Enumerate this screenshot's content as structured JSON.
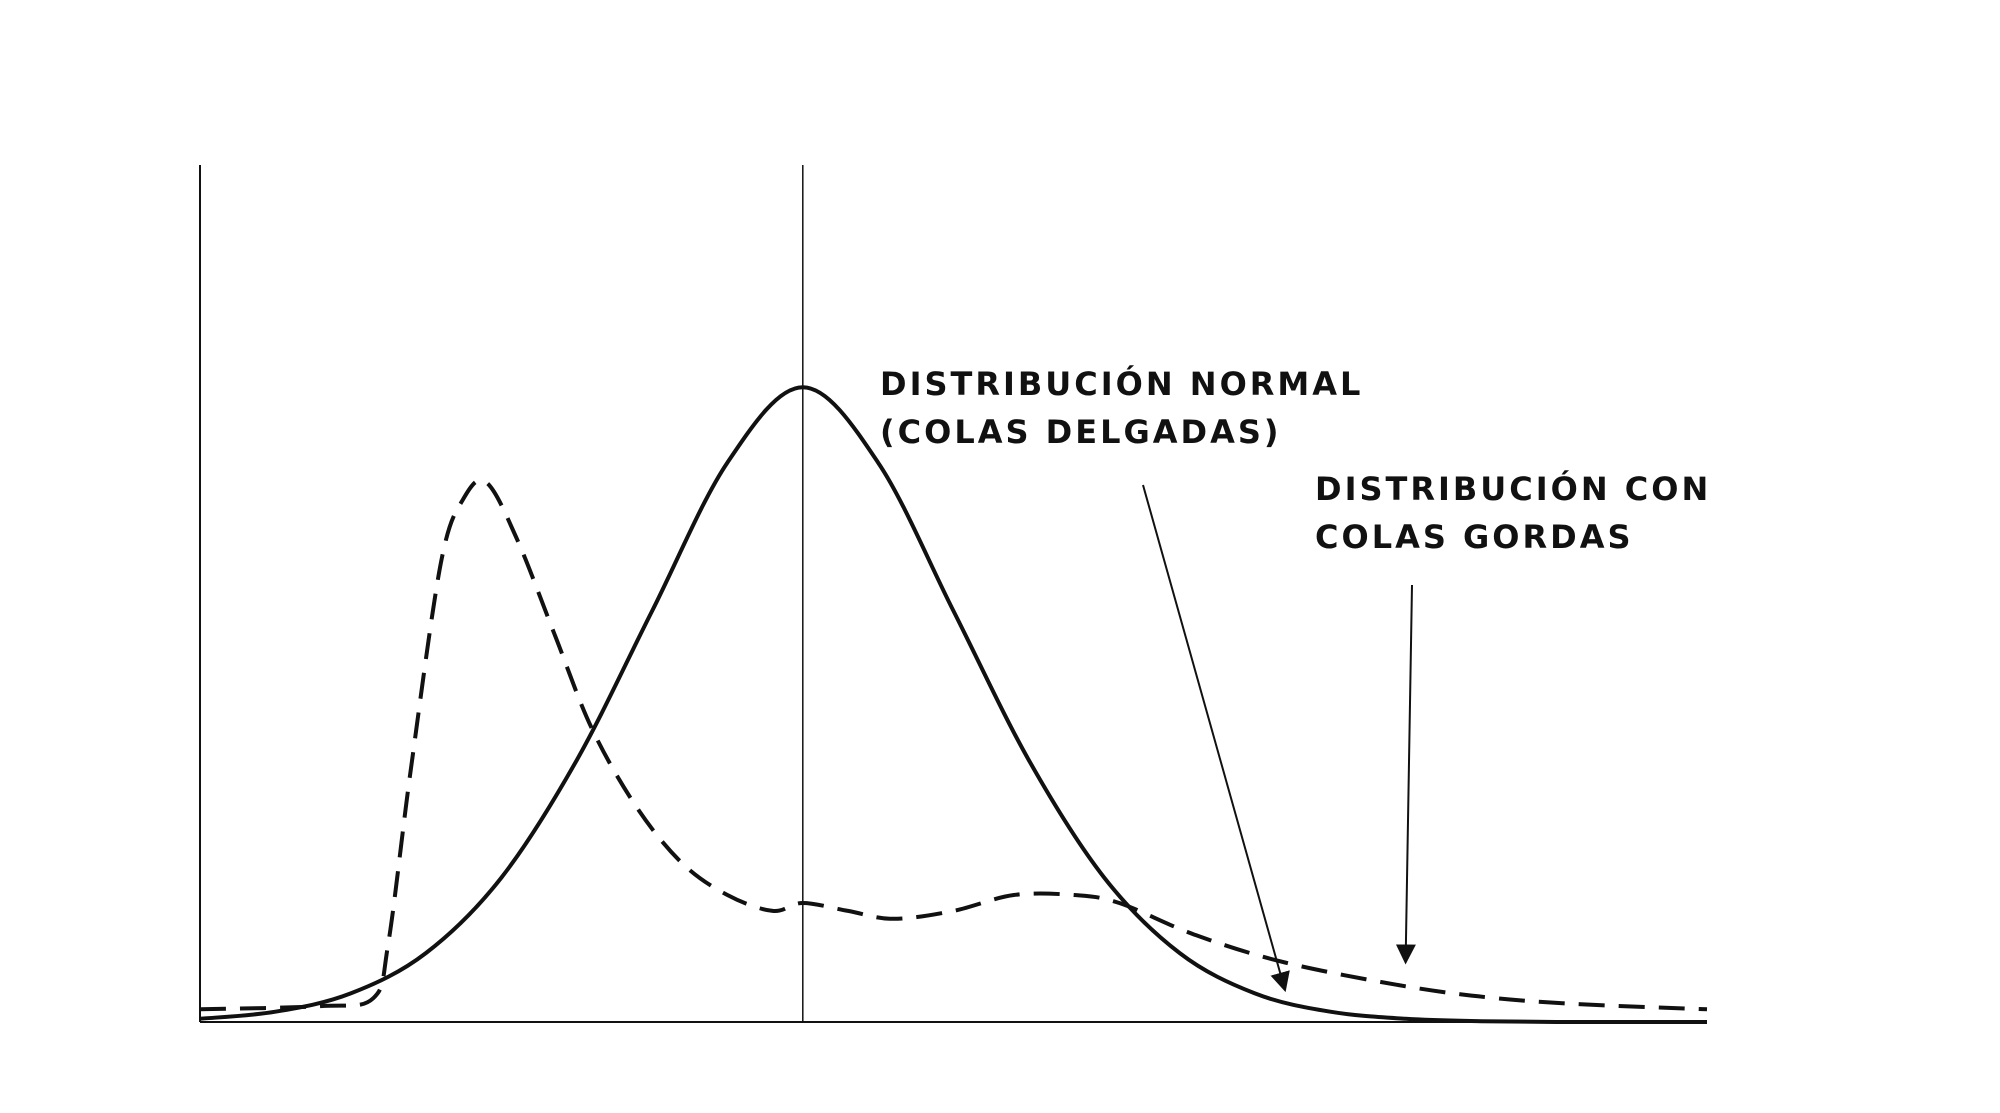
{
  "chart_data": {
    "type": "line",
    "title": "",
    "xlabel": "",
    "ylabel": "",
    "grid": false,
    "xlim": [
      -4,
      6
    ],
    "ylim": [
      0,
      1.08
    ],
    "center_line_x": 0,
    "series": [
      {
        "key": "normal",
        "style": "solid",
        "color": "#111111",
        "x": [
          -4,
          -3.5,
          -3,
          -2.5,
          -2,
          -1.5,
          -1,
          -0.5,
          0,
          0.5,
          1,
          1.5,
          2,
          2.5,
          3,
          3.5,
          4,
          4.5,
          5,
          5.5,
          6
        ],
        "y": [
          0.004,
          0.013,
          0.036,
          0.087,
          0.182,
          0.33,
          0.518,
          0.705,
          0.8,
          0.705,
          0.518,
          0.33,
          0.182,
          0.087,
          0.036,
          0.013,
          0.004,
          0.001,
          0.0,
          0.0,
          0.0
        ]
      },
      {
        "key": "fat_tails",
        "style": "dashed",
        "color": "#111111",
        "x": [
          -4,
          -3.2,
          -2.85,
          -2.75,
          -2.6,
          -2.4,
          -2.25,
          -2.1,
          -1.9,
          -1.65,
          -1.4,
          -1.1,
          -0.8,
          -0.5,
          -0.2,
          0,
          0.3,
          0.6,
          1,
          1.4,
          1.8,
          2.1,
          2.6,
          3.2,
          4,
          4.6,
          5.2,
          6
        ],
        "y": [
          0.016,
          0.02,
          0.03,
          0.1,
          0.32,
          0.58,
          0.66,
          0.68,
          0.61,
          0.49,
          0.37,
          0.27,
          0.2,
          0.16,
          0.14,
          0.15,
          0.14,
          0.13,
          0.14,
          0.16,
          0.16,
          0.15,
          0.11,
          0.075,
          0.045,
          0.03,
          0.022,
          0.016
        ]
      }
    ],
    "annotations": [
      {
        "key": "normal_label",
        "lines": [
          "DISTRIBUCIÓN NORMAL",
          "(COLAS DELGADAS)"
        ],
        "arrow_to_series": "normal",
        "arrow_target": {
          "x": 3.2,
          "y": 0.04
        }
      },
      {
        "key": "fat_label",
        "lines": [
          "DISTRIBUCIÓN CON",
          "COLAS GORDAS"
        ],
        "arrow_to_series": "fat_tails",
        "arrow_target": {
          "x": 4.0,
          "y": 0.075
        }
      }
    ]
  }
}
